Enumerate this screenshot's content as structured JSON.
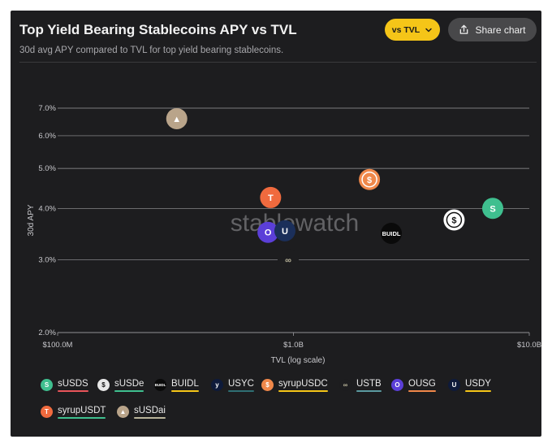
{
  "header": {
    "title": "Top Yield Bearing Stablecoins APY vs TVL",
    "subtitle": "30d avg APY compared to TVL for top yield bearing stablecoins.",
    "vs_button": "vs TVL",
    "share_button": "Share chart"
  },
  "watermark": "stablewatch",
  "chart_data": {
    "type": "scatter",
    "title": "Top Yield Bearing Stablecoins APY vs TVL",
    "subtitle": "30d avg APY compared to TVL for top yield bearing stablecoins.",
    "xlabel": "TVL (log scale)",
    "ylabel": "30d APY",
    "x_scale": "log",
    "y_scale": "log",
    "xlim": [
      100000000,
      10000000000
    ],
    "ylim": [
      2.0,
      7.0
    ],
    "x_ticks": [
      {
        "value": 100000000,
        "label": "$100.0M"
      },
      {
        "value": 1000000000,
        "label": "$1.0B"
      },
      {
        "value": 10000000000,
        "label": "$10.0B"
      }
    ],
    "y_ticks": [
      {
        "value": 2.0,
        "label": "2.0%"
      },
      {
        "value": 3.0,
        "label": "3.0%"
      },
      {
        "value": 4.0,
        "label": "4.0%"
      },
      {
        "value": 5.0,
        "label": "5.0%"
      },
      {
        "value": 6.0,
        "label": "6.0%"
      },
      {
        "value": 7.0,
        "label": "7.0%"
      }
    ],
    "grid": true,
    "legend_position": "bottom",
    "series": [
      {
        "name": "sUSDS",
        "x": 7000000000,
        "y": 4.0,
        "color": "#3fbf8f",
        "icon": "s-arrows-icon",
        "glyph": "S"
      },
      {
        "name": "sUSDe",
        "x": 4800000000,
        "y": 3.75,
        "color": "#e8e8e8",
        "icon": "dollar-ring-icon",
        "glyph": "$"
      },
      {
        "name": "BUIDL",
        "x": 2600000000,
        "y": 3.48,
        "color": "#f5c518",
        "icon": "buidl-icon",
        "glyph": "BUIDL"
      },
      {
        "name": "USYC",
        "x": null,
        "y": null,
        "color": "#2f6f73",
        "icon": "y-icon",
        "glyph": "y"
      },
      {
        "name": "syrupUSDC",
        "x": 2100000000,
        "y": 4.7,
        "color": "#f0884a",
        "icon": "syrup-dollar-icon",
        "glyph": "$"
      },
      {
        "name": "USTB",
        "x": 950000000,
        "y": 3.0,
        "color": "#b9b49a",
        "icon": "infinity-icon",
        "glyph": "∞"
      },
      {
        "name": "OUSG",
        "x": 780000000,
        "y": 3.5,
        "color": "#f0884a",
        "icon": "ousg-icon",
        "glyph": "O"
      },
      {
        "name": "USDY",
        "x": 920000000,
        "y": 3.53,
        "color": "#f5c518",
        "icon": "usdy-icon",
        "glyph": "U"
      },
      {
        "name": "syrupUSDT",
        "x": 800000000,
        "y": 4.25,
        "color": "#3fbf8f",
        "icon": "tether-icon",
        "glyph": "T"
      },
      {
        "name": "sUSDai",
        "x": 320000000,
        "y": 6.6,
        "color": "#b9b49a",
        "icon": "susdai-icon",
        "glyph": "▲"
      }
    ]
  },
  "legend": {
    "items": [
      {
        "label": "sUSDS",
        "ico_bg": "#3fbf8f",
        "ico_fg": "#ffffff",
        "glyph": "S",
        "line": "#e8545a"
      },
      {
        "label": "sUSDe",
        "ico_bg": "#e8e8e8",
        "ico_fg": "#111111",
        "glyph": "$",
        "line": "#3fbf8f"
      },
      {
        "label": "BUIDL",
        "ico_bg": "#0a0a0a",
        "ico_fg": "#ffffff",
        "glyph": "BUIDL",
        "line": "#f5c518"
      },
      {
        "label": "USYC",
        "ico_bg": "#0e1a3a",
        "ico_fg": "#ffffff",
        "glyph": "y",
        "line": "#2f6f73"
      },
      {
        "label": "syrupUSDC",
        "ico_bg": "#f0884a",
        "ico_fg": "#ffffff",
        "glyph": "$",
        "line": "#f5c518"
      },
      {
        "label": "USTB",
        "ico_bg": "#1d1d1f",
        "ico_fg": "#b9b49a",
        "glyph": "∞",
        "line": "#5b9aa0"
      },
      {
        "label": "OUSG",
        "ico_bg": "#5b3fd8",
        "ico_fg": "#ffffff",
        "glyph": "O",
        "line": "#f0884a"
      },
      {
        "label": "USDY",
        "ico_bg": "#0e1a3a",
        "ico_fg": "#ffffff",
        "glyph": "U",
        "line": "#f5c518"
      },
      {
        "label": "syrupUSDT",
        "ico_bg": "#f06a3e",
        "ico_fg": "#ffffff",
        "glyph": "T",
        "line": "#3fbf8f"
      },
      {
        "label": "sUSDai",
        "ico_bg": "#b9a48a",
        "ico_fg": "#ffffff",
        "glyph": "▲",
        "line": "#b9b49a"
      }
    ]
  }
}
